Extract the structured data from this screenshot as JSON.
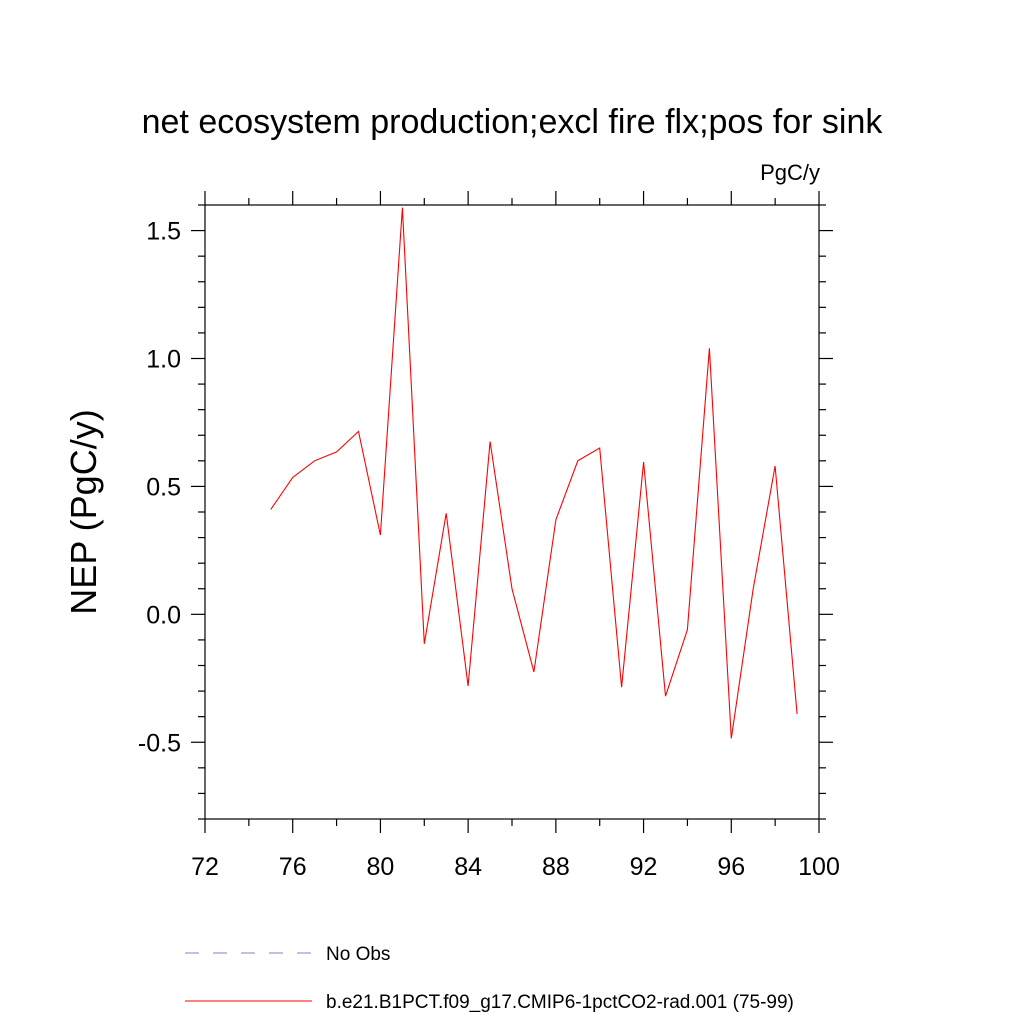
{
  "chart_data": {
    "type": "line",
    "title": "net ecosystem production;excl fire flx;pos for sink",
    "units": "PgC/y",
    "ylabel": "NEP  (PgC/y)",
    "xlabel": "",
    "xlim": [
      72,
      100
    ],
    "ylim": [
      -0.8,
      1.6
    ],
    "x_ticks": [
      72,
      76,
      80,
      84,
      88,
      92,
      96,
      100
    ],
    "y_ticks": [
      -0.5,
      0.0,
      0.5,
      1.0,
      1.5
    ],
    "y_tick_labels": [
      "-0.5",
      "0.0",
      "0.5",
      "1.0",
      "1.5"
    ],
    "grid": false,
    "legend_position": "bottom",
    "series": [
      {
        "name": "No Obs",
        "color": "#8080c0",
        "dash": "dashed",
        "x": [],
        "values": []
      },
      {
        "name": "b.e21.B1PCT.f09_g17.CMIP6-1pctCO2-rad.001 (75-99)",
        "color": "#ff0000",
        "dash": "solid",
        "x": [
          75,
          76,
          77,
          78,
          79,
          80,
          81,
          82,
          83,
          84,
          85,
          86,
          87,
          88,
          89,
          90,
          91,
          92,
          93,
          94,
          95,
          96,
          97,
          98,
          99
        ],
        "values": [
          0.41,
          0.535,
          0.6,
          0.635,
          0.715,
          0.31,
          1.59,
          -0.115,
          0.395,
          -0.28,
          0.675,
          0.1,
          -0.225,
          0.37,
          0.6,
          0.65,
          -0.285,
          0.595,
          -0.32,
          -0.06,
          1.04,
          -0.485,
          0.1,
          0.58,
          -0.39
        ]
      }
    ]
  }
}
